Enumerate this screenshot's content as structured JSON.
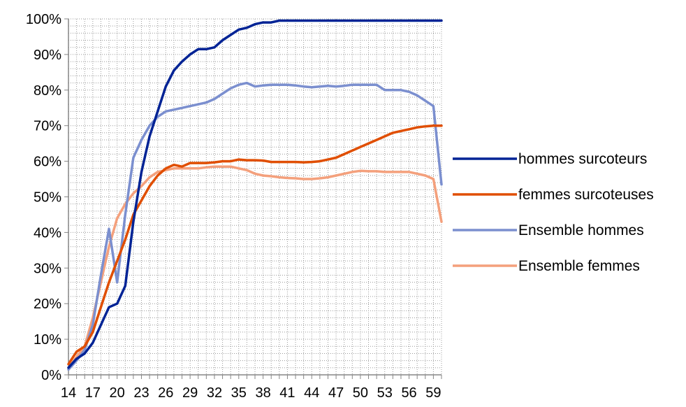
{
  "chart_data": {
    "type": "line",
    "title": "",
    "xlabel": "",
    "ylabel": "",
    "x": [
      14,
      15,
      16,
      17,
      18,
      19,
      20,
      21,
      22,
      23,
      24,
      25,
      26,
      27,
      28,
      29,
      30,
      31,
      32,
      33,
      34,
      35,
      36,
      37,
      38,
      39,
      40,
      41,
      42,
      43,
      44,
      45,
      46,
      47,
      48,
      49,
      50,
      51,
      52,
      53,
      54,
      55,
      56,
      57,
      58,
      59,
      60
    ],
    "x_tick_labels": [
      "14",
      "17",
      "20",
      "23",
      "26",
      "29",
      "32",
      "35",
      "38",
      "41",
      "44",
      "47",
      "50",
      "53",
      "56",
      "59"
    ],
    "x_tick_values": [
      14,
      17,
      20,
      23,
      26,
      29,
      32,
      35,
      38,
      41,
      44,
      47,
      50,
      53,
      56,
      59
    ],
    "y_tick_labels": [
      "0%",
      "10%",
      "20%",
      "30%",
      "40%",
      "50%",
      "60%",
      "70%",
      "80%",
      "90%",
      "100%"
    ],
    "ylim": [
      0,
      100
    ],
    "grid": true,
    "legend_position": "right",
    "series": [
      {
        "name": "hommes surcoteurs",
        "color": "#002395",
        "values": [
          2,
          4.5,
          6,
          9,
          14,
          19,
          20,
          25,
          43,
          57,
          67,
          74,
          81,
          85.5,
          88,
          90,
          91.5,
          91.5,
          92,
          94,
          95.5,
          97,
          97.5,
          98.5,
          99,
          99,
          99.5,
          99.5,
          99.5,
          99.5,
          99.5,
          99.5,
          99.5,
          99.5,
          99.5,
          99.5,
          99.5,
          99.5,
          99.5,
          99.5,
          99.5,
          99.5,
          99.5,
          99.5,
          99.5,
          99.5,
          99.5
        ]
      },
      {
        "name": "femmes surcoteuses",
        "color": "#e04e00",
        "values": [
          3,
          6.5,
          8,
          12,
          19,
          26,
          32,
          38,
          45,
          49,
          53,
          56,
          58,
          59,
          58.5,
          59.5,
          59.5,
          59.5,
          59.7,
          60,
          60,
          60.5,
          60.3,
          60.3,
          60.2,
          59.8,
          59.8,
          59.8,
          59.8,
          59.7,
          59.8,
          60,
          60.5,
          61,
          62,
          63,
          64,
          65,
          66,
          67,
          68,
          68.5,
          69,
          69.5,
          69.8,
          70,
          70
        ]
      },
      {
        "name": "Ensemble hommes",
        "color": "#7b8fcf",
        "values": [
          1.5,
          4,
          7,
          14,
          28,
          41,
          26,
          45,
          61,
          66,
          70,
          72.5,
          74,
          74.5,
          75,
          75.5,
          76,
          76.5,
          77.5,
          79,
          80.5,
          81.5,
          82,
          81,
          81.3,
          81.5,
          81.5,
          81.5,
          81.3,
          81,
          80.8,
          81,
          81.2,
          81,
          81.2,
          81.5,
          81.5,
          81.5,
          81.5,
          80,
          80,
          80,
          79.5,
          78.5,
          77,
          75.5,
          53.5
        ]
      },
      {
        "name": "Ensemble femmes",
        "color": "#f4a07c",
        "values": [
          2,
          5,
          8,
          16,
          26,
          36,
          44,
          48,
          51,
          53,
          55.5,
          57,
          57.5,
          58,
          58,
          58,
          58,
          58.3,
          58.5,
          58.5,
          58.5,
          58,
          57.5,
          56.5,
          56,
          55.8,
          55.5,
          55.3,
          55.2,
          55,
          55,
          55.2,
          55.5,
          56,
          56.5,
          57,
          57.3,
          57.2,
          57.2,
          57,
          57,
          57,
          57,
          56.5,
          56,
          55,
          43
        ]
      }
    ]
  }
}
